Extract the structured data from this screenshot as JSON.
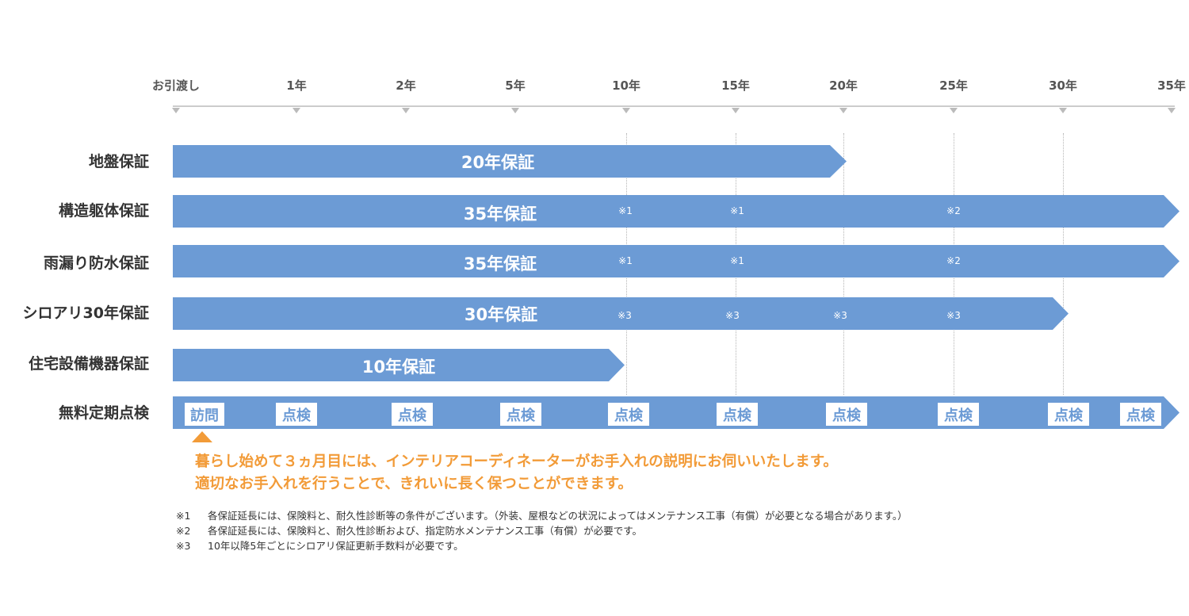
{
  "timeline": {
    "labels": [
      "お引渡し",
      "1年",
      "2年",
      "5年",
      "10年",
      "15年",
      "20年",
      "25年",
      "30年",
      "35年"
    ]
  },
  "rows": [
    {
      "label": "地盤保証",
      "bar_text": "20年保証",
      "span": "20年",
      "notes": []
    },
    {
      "label": "構造躯体保証",
      "bar_text": "35年保証",
      "span": "35年",
      "notes": [
        "※1",
        "※1",
        "※2"
      ]
    },
    {
      "label": "雨漏り防水保証",
      "bar_text": "35年保証",
      "span": "35年",
      "notes": [
        "※1",
        "※1",
        "※2"
      ]
    },
    {
      "label": "シロアリ30年保証",
      "bar_text": "30年保証",
      "span": "30年",
      "notes": [
        "※3",
        "※3",
        "※3",
        "※3"
      ]
    },
    {
      "label": "住宅設備機器保証",
      "bar_text": "10年保証",
      "span": "10年",
      "notes": []
    }
  ],
  "inspection": {
    "label": "無料定期点検",
    "items": [
      "訪問",
      "点検",
      "点検",
      "点検",
      "点検",
      "点検",
      "点検",
      "点検",
      "点検",
      "点検"
    ]
  },
  "message": {
    "line1": "暮らし始めて３ヵ月目には、インテリアコーディネーターがお手入れの説明にお伺いいたします。",
    "line2": "適切なお手入れを行うことで、きれいに長く保つことができます。"
  },
  "footnotes": [
    {
      "mark": "※1",
      "text": "各保証延長には、保険料と、耐久性診断等の条件がございます。（外装、屋根などの状況によってはメンテナンス工事（有償）が必要となる場合があります。）"
    },
    {
      "mark": "※2",
      "text": "各保証延長には、保険料と、耐久性診断および、指定防水メンテナンス工事（有償）が必要です。"
    },
    {
      "mark": "※3",
      "text": "10年以降5年ごとにシロアリ保証更新手数料が必要です。"
    }
  ],
  "colors": {
    "bar": "#6c9bd5",
    "accent": "#f29b38",
    "text": "#333333"
  }
}
